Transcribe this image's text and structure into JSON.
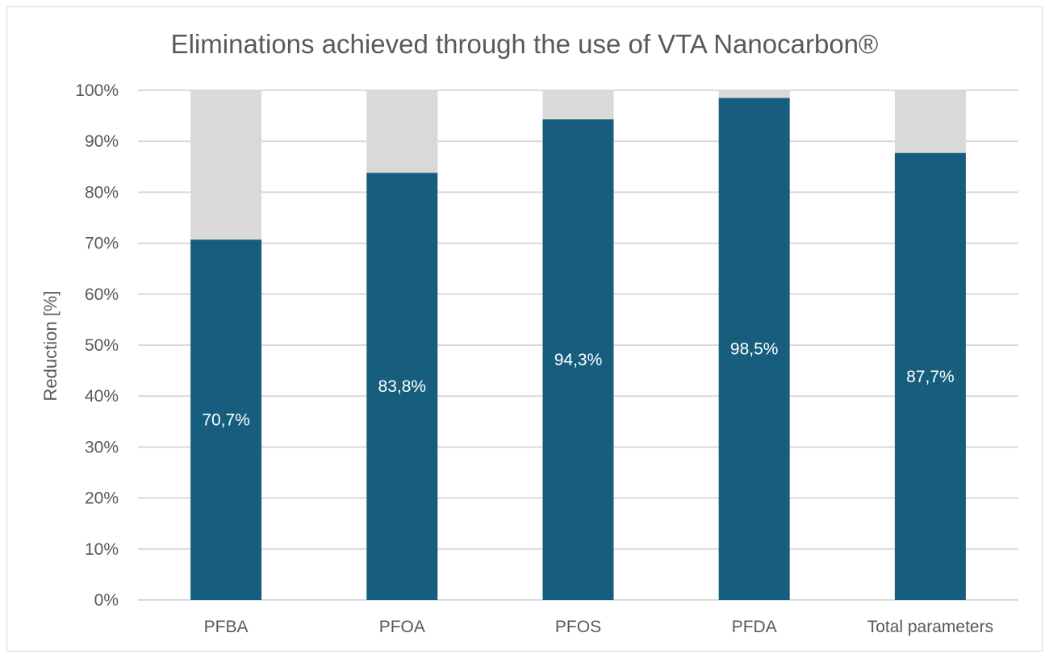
{
  "chart_data": {
    "type": "bar",
    "stacked": true,
    "title": "Eliminations achieved through the use of VTA Nanocarbon®",
    "xlabel": "",
    "ylabel": "Reduction [%]",
    "ylim": [
      0,
      100
    ],
    "yticks": [
      "0%",
      "10%",
      "20%",
      "30%",
      "40%",
      "50%",
      "60%",
      "70%",
      "80%",
      "90%",
      "100%"
    ],
    "grid": true,
    "categories": [
      "PFBA",
      "PFOA",
      "PFOS",
      "PFDA",
      "Total parameters"
    ],
    "series": [
      {
        "values": [
          70.7,
          83.8,
          94.3,
          98.5,
          87.7
        ],
        "labels": [
          "70,7%",
          "83,8%",
          "94,3%",
          "98,5%",
          "87,7%"
        ],
        "color": "#175e7e"
      },
      {
        "values": [
          29.3,
          16.2,
          5.7,
          1.5,
          12.3
        ],
        "color": "#d9d9d9"
      }
    ]
  }
}
